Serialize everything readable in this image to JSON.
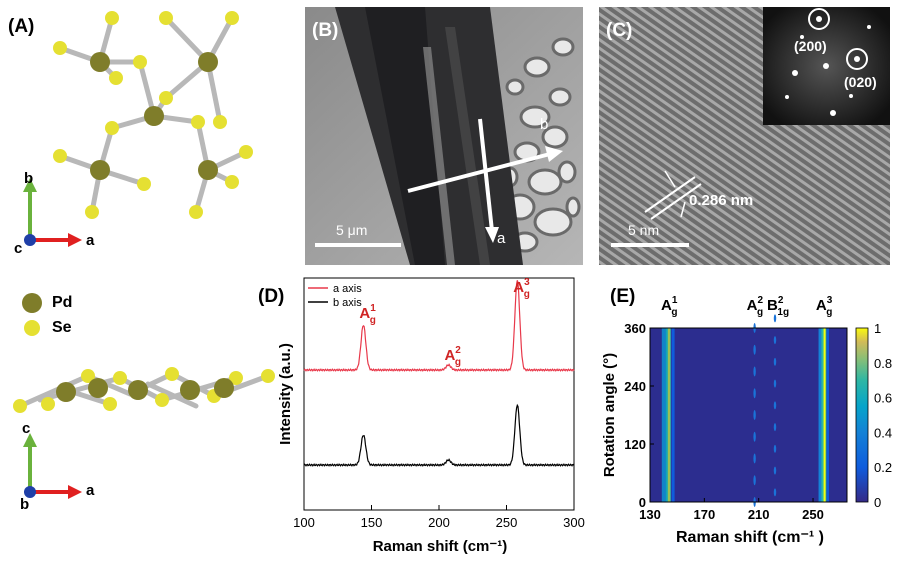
{
  "panels": {
    "A": {
      "label": "(A)",
      "axes_top": {
        "up": "b",
        "right": "a",
        "origin": "c"
      },
      "axes_bottom": {
        "up": "c",
        "right": "a",
        "origin": "b"
      },
      "legend": [
        {
          "name": "Pd",
          "color": "#7f7d2a"
        },
        {
          "name": "Se",
          "color": "#e5e032"
        }
      ]
    },
    "B": {
      "label": "(B)",
      "scalebar": "5 μm",
      "arrow_a": "a",
      "arrow_b": "b"
    },
    "C": {
      "label": "(C)",
      "scalebar": "5 nm",
      "d_spacing": "0.286 nm",
      "fft_spots": [
        "(200)",
        "(020)"
      ]
    },
    "D": {
      "label": "(D)"
    },
    "E": {
      "label": "(E)"
    }
  },
  "chart_data": [
    {
      "type": "line",
      "panel": "D",
      "xlabel": "Raman shift (cm⁻¹)",
      "ylabel": "Intensity (a.u.)",
      "xlim": [
        100,
        300
      ],
      "xticks": [
        100,
        150,
        200,
        250,
        300
      ],
      "peaks": [
        {
          "label_main": "A",
          "sub": "g",
          "sup": "1",
          "x": 144
        },
        {
          "label_main": "A",
          "sub": "g",
          "sup": "2",
          "x": 207
        },
        {
          "label_main": "A",
          "sub": "g",
          "sup": "3",
          "x": 258
        }
      ],
      "series": [
        {
          "name": "a axis",
          "color": "#e8384a",
          "peak_heights": {
            "144": 0.45,
            "207": 0.05,
            "258": 0.9
          }
        },
        {
          "name": "b axis",
          "color": "#000000",
          "peak_heights": {
            "144": 0.3,
            "207": 0.05,
            "258": 0.6
          }
        }
      ]
    },
    {
      "type": "heatmap",
      "panel": "E",
      "xlabel": "Raman shift (cm⁻¹ )",
      "ylabel": "Rotation angle (°)",
      "xlim": [
        130,
        275
      ],
      "xticks": [
        130,
        170,
        210,
        250
      ],
      "ylim": [
        0,
        360
      ],
      "yticks": [
        0,
        120,
        240,
        360
      ],
      "colorbar": {
        "min": 0,
        "max": 1,
        "ticks": [
          "0",
          "0.2",
          "0.4",
          "0.6",
          "0.8",
          "1"
        ]
      },
      "modes": [
        {
          "label_main": "A",
          "sub": "g",
          "sup": "1",
          "x": 144
        },
        {
          "label_main": "A",
          "sub": "g",
          "sup": "2",
          "x": 207
        },
        {
          "label_main": "B",
          "sub": "1g",
          "sup": "2",
          "x": 222
        },
        {
          "label_main": "A",
          "sub": "g",
          "sup": "3",
          "x": 258
        }
      ]
    }
  ]
}
